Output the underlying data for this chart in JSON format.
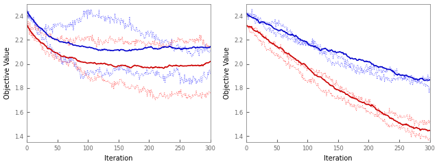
{
  "xlim": [
    0,
    300
  ],
  "ylim": [
    1.35,
    2.5
  ],
  "yticks": [
    1.4,
    1.6,
    1.8,
    2.0,
    2.2,
    2.4
  ],
  "xticks": [
    0,
    50,
    100,
    150,
    200,
    250,
    300
  ],
  "xlabel": "Iteration",
  "ylabel": "Objective Value",
  "blue_color": "#0000CC",
  "red_color": "#CC0000",
  "blue_dot_color": "#4444FF",
  "red_dot_color": "#FF4444",
  "linewidth_solid": 1.2,
  "linewidth_dot": 0.7,
  "n_points": 301
}
